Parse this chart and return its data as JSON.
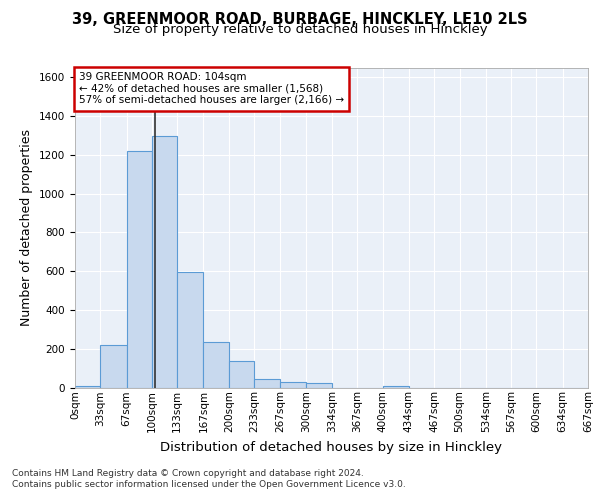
{
  "title_line1": "39, GREENMOOR ROAD, BURBAGE, HINCKLEY, LE10 2LS",
  "title_line2": "Size of property relative to detached houses in Hinckley",
  "xlabel": "Distribution of detached houses by size in Hinckley",
  "ylabel": "Number of detached properties",
  "footnote1": "Contains HM Land Registry data © Crown copyright and database right 2024.",
  "footnote2": "Contains public sector information licensed under the Open Government Licence v3.0.",
  "bar_color": "#c8d9ee",
  "bar_edge_color": "#5b9bd5",
  "property_line_color": "#333333",
  "annotation_box_edge": "#cc0000",
  "annotation_text": "39 GREENMOOR ROAD: 104sqm\n← 42% of detached houses are smaller (1,568)\n57% of semi-detached houses are larger (2,166) →",
  "property_size_sqm": 104,
  "bins": [
    0,
    33,
    67,
    100,
    133,
    167,
    200,
    233,
    267,
    300,
    334,
    367,
    400,
    434,
    467,
    500,
    534,
    567,
    600,
    634,
    667
  ],
  "bar_values": [
    10,
    220,
    1220,
    1295,
    595,
    235,
    135,
    45,
    30,
    25,
    0,
    0,
    10,
    0,
    0,
    0,
    0,
    0,
    0,
    0
  ],
  "tick_labels": [
    "0sqm",
    "33sqm",
    "67sqm",
    "100sqm",
    "133sqm",
    "167sqm",
    "200sqm",
    "233sqm",
    "267sqm",
    "300sqm",
    "334sqm",
    "367sqm",
    "400sqm",
    "434sqm",
    "467sqm",
    "500sqm",
    "534sqm",
    "567sqm",
    "600sqm",
    "634sqm",
    "667sqm"
  ],
  "ylim": [
    0,
    1650
  ],
  "yticks": [
    0,
    200,
    400,
    600,
    800,
    1000,
    1200,
    1400,
    1600
  ],
  "plot_bg_color": "#eaf0f8",
  "grid_color": "#ffffff",
  "title_fontsize": 10.5,
  "subtitle_fontsize": 9.5,
  "axis_label_fontsize": 9,
  "tick_fontsize": 7.5,
  "footnote_fontsize": 6.5
}
